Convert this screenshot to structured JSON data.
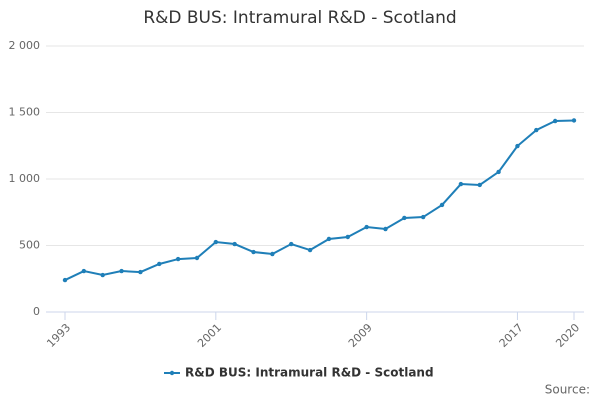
{
  "chart_data": {
    "type": "line",
    "title": "R&D BUS: Intramural R&D - Scotland",
    "x": [
      1993,
      1994,
      1995,
      1996,
      1997,
      1998,
      1999,
      2000,
      2001,
      2002,
      2003,
      2004,
      2005,
      2006,
      2007,
      2008,
      2009,
      2010,
      2011,
      2012,
      2013,
      2014,
      2015,
      2016,
      2017,
      2018,
      2019,
      2020
    ],
    "series": [
      {
        "name": "R&D BUS: Intramural R&D - Scotland",
        "color": "#1f7fb8",
        "values": [
          240,
          308,
          278,
          308,
          300,
          361,
          398,
          406,
          526,
          511,
          451,
          436,
          511,
          466,
          549,
          564,
          639,
          624,
          707,
          714,
          805,
          962,
          955,
          1053,
          1248,
          1368,
          1436,
          1440
        ]
      }
    ],
    "xlim": [
      1993,
      2020
    ],
    "xticks": [
      1993,
      2001,
      2009,
      2017,
      2020
    ],
    "ylim": [
      0,
      2000
    ],
    "yticks": [
      0,
      500,
      {
        "value": 1000,
        "label": "1 000"
      },
      {
        "value": 1500,
        "label": "1 500"
      },
      {
        "value": 2000,
        "label": "2 000"
      }
    ],
    "grid": true,
    "legend": "bottom",
    "source": "Source:"
  }
}
